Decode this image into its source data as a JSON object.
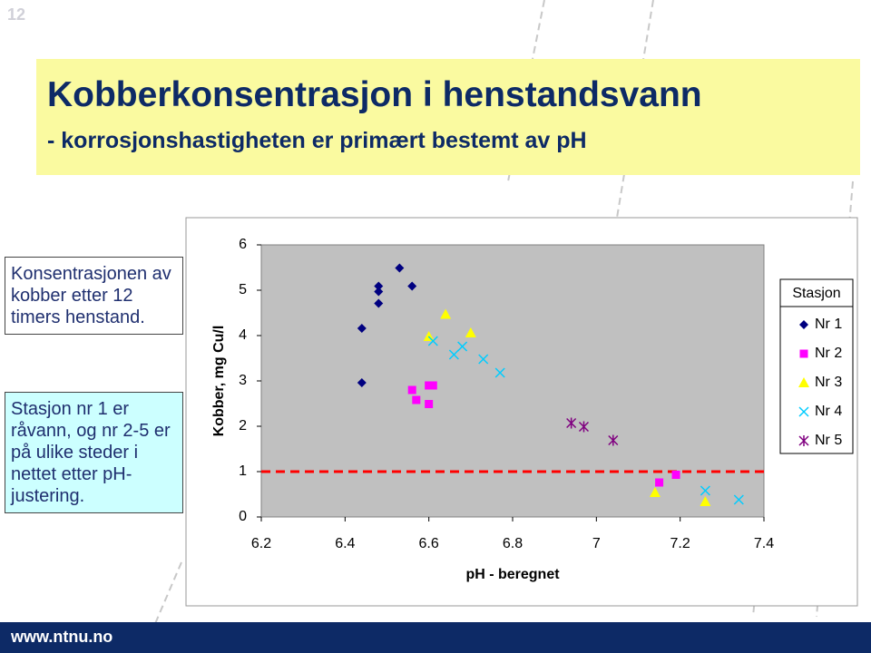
{
  "page_number": "12",
  "header": {
    "title": "Kobberkonsentrasjon i henstandsvann",
    "subtitle": "- korrosjonshastigheten er primært bestemt av pH"
  },
  "text_boxes": [
    "Konsentrasjonen av kobber etter 12 timers henstand.",
    "Stasjon nr 1 er råvann, og nr 2-5 er på ulike steder i nettet etter pH-justering."
  ],
  "footer": "www.ntnu.no",
  "chart_data": {
    "type": "scatter",
    "xlabel": "pH - beregnet",
    "ylabel": "Kobber, mg Cu/l",
    "xlim": [
      6.2,
      7.4
    ],
    "xticks": [
      6.2,
      6.4,
      6.6,
      6.8,
      7,
      7.2,
      7.4
    ],
    "ylim": [
      0,
      6
    ],
    "yticks": [
      0,
      1,
      2,
      3,
      4,
      5,
      6
    ],
    "grid": false,
    "legend_title": "Stasjon",
    "legend": "right",
    "reference_line": 1,
    "reference_color": "#ff0000",
    "series": [
      {
        "name": "Nr 1",
        "color": "#000080",
        "marker": "diamond",
        "x": [
          6.44,
          6.44,
          6.48,
          6.48,
          6.48,
          6.53,
          6.56
        ],
        "values": [
          2.96,
          4.16,
          4.71,
          4.97,
          5.09,
          5.49,
          5.09
        ]
      },
      {
        "name": "Nr 2",
        "color": "#ff00ff",
        "marker": "square",
        "x": [
          6.56,
          6.57,
          6.6,
          6.61,
          6.6,
          7.15,
          7.19
        ],
        "values": [
          2.8,
          2.58,
          2.9,
          2.9,
          2.49,
          0.76,
          0.93
        ]
      },
      {
        "name": "Nr 3",
        "color": "#ffff00",
        "marker": "triangle",
        "x": [
          6.6,
          6.64,
          6.7,
          7.14,
          7.26
        ],
        "values": [
          3.98,
          4.47,
          4.06,
          0.54,
          0.34
        ]
      },
      {
        "name": "Nr 4",
        "color": "#00ccff",
        "marker": "x",
        "x": [
          6.61,
          6.66,
          6.68,
          6.73,
          6.77,
          7.26,
          7.34
        ],
        "values": [
          3.88,
          3.58,
          3.76,
          3.48,
          3.18,
          0.58,
          0.38
        ]
      },
      {
        "name": "Nr 5",
        "color": "#800080",
        "marker": "asterisk",
        "x": [
          6.94,
          6.97,
          7.04
        ],
        "values": [
          2.07,
          1.99,
          1.69
        ]
      }
    ]
  }
}
